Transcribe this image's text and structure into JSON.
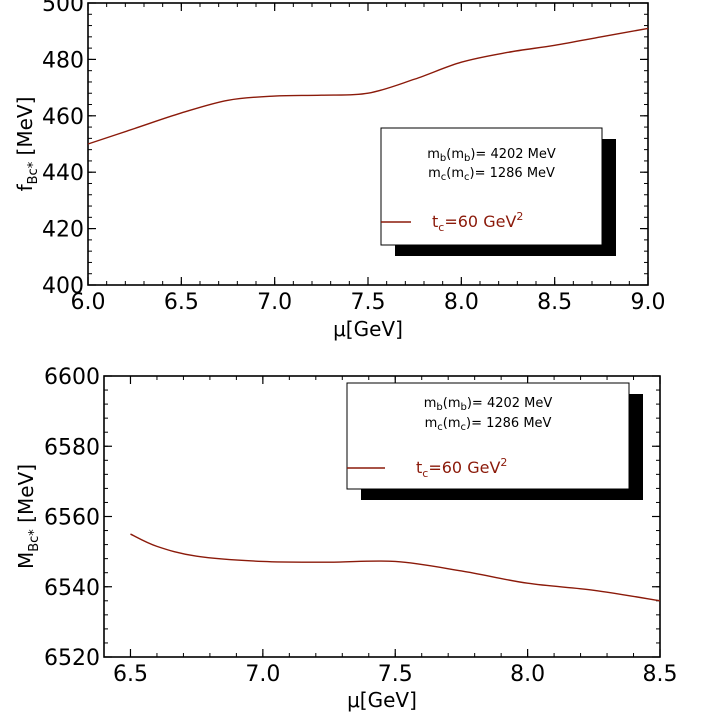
{
  "colors": {
    "curve": "#8b1a0a",
    "axis": "#000000"
  },
  "chart_data": [
    {
      "type": "line",
      "xlabel": "μ[GeV]",
      "ylabel": "f",
      "ylabel_sub": "Bc*",
      "ylabel_unit": "[MeV]",
      "xlim": [
        6.0,
        9.0
      ],
      "ylim": [
        400,
        500
      ],
      "xticks": [
        6.0,
        6.5,
        7.0,
        7.5,
        8.0,
        8.5,
        9.0
      ],
      "xtick_labels": [
        "6.0",
        "6.5",
        "7.0",
        "7.5",
        "8.0",
        "8.5",
        "9.0"
      ],
      "yticks": [
        400,
        420,
        440,
        460,
        480,
        500
      ],
      "ytick_labels": [
        "400",
        "420",
        "440",
        "460",
        "480",
        "500"
      ],
      "legend_position": "right",
      "legend": {
        "mb_line": "m",
        "mb_sub": "b",
        "mb_mid": "(m",
        "mb_sub2": "b",
        "mb_val": ")= 4202 MeV",
        "mc_line": "m",
        "mc_sub": "c",
        "mc_mid": "(m",
        "mc_sub2": "c",
        "mc_val": ")= 1286 MeV",
        "series_t": "t",
        "series_sub": "c",
        "series_val": "=60 GeV",
        "series_sup": "2"
      },
      "series": [
        {
          "x": [
            6.0,
            6.25,
            6.5,
            6.75,
            7.0,
            7.25,
            7.5,
            7.75,
            8.0,
            8.25,
            8.5,
            8.75,
            9.0
          ],
          "y": [
            450.0,
            455.5,
            461.0,
            465.5,
            467.0,
            467.3,
            468.0,
            473.0,
            479.0,
            482.5,
            485.0,
            488.0,
            491.0
          ]
        }
      ]
    },
    {
      "type": "line",
      "xlabel": "μ[GeV]",
      "ylabel": "M",
      "ylabel_sub": "Bc*",
      "ylabel_unit": "[MeV]",
      "xlim": [
        6.4,
        8.5
      ],
      "ylim": [
        6520,
        6600
      ],
      "xticks": [
        6.5,
        7.0,
        7.5,
        8.0,
        8.5
      ],
      "xtick_labels": [
        "6.5",
        "7.0",
        "7.5",
        "8.0",
        "8.5"
      ],
      "yticks": [
        6520,
        6540,
        6560,
        6580,
        6600
      ],
      "ytick_labels": [
        "6520",
        "6540",
        "6560",
        "6580",
        "6600"
      ],
      "legend_position": "top-right",
      "legend": {
        "mb_line": "m",
        "mb_sub": "b",
        "mb_mid": "(m",
        "mb_sub2": "b",
        "mb_val": ")= 4202 MeV",
        "mc_line": "m",
        "mc_sub": "c",
        "mc_mid": "(m",
        "mc_sub2": "c",
        "mc_val": ")= 1286 MeV",
        "series_t": "t",
        "series_sub": "c",
        "series_val": "=60 GeV",
        "series_sup": "2"
      },
      "series": [
        {
          "x": [
            6.5,
            6.6,
            6.75,
            7.0,
            7.25,
            7.5,
            7.75,
            8.0,
            8.25,
            8.5
          ],
          "y": [
            6555.0,
            6551.5,
            6548.7,
            6547.2,
            6547.0,
            6547.2,
            6544.5,
            6541.0,
            6539.0,
            6536.0
          ]
        }
      ]
    }
  ]
}
